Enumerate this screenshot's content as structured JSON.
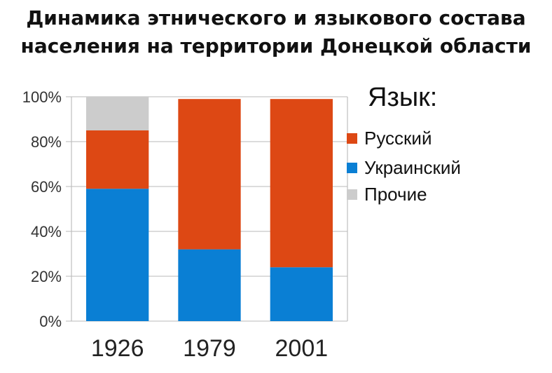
{
  "title_line1": "Динамика этнического и языкового состава",
  "title_line2": "населения на территории Донецкой области",
  "chart_data": {
    "type": "bar",
    "stacked": true,
    "categories": [
      "1926",
      "1979",
      "2001"
    ],
    "series": [
      {
        "name": "Украинский",
        "color": "#0a7fd4",
        "values": [
          59,
          32,
          24
        ]
      },
      {
        "name": "Русский",
        "color": "#dd4814",
        "values": [
          26,
          67,
          75
        ]
      },
      {
        "name": "Прочие",
        "color": "#cccccc",
        "values": [
          15,
          0,
          0
        ]
      }
    ],
    "ylim": [
      0,
      100
    ],
    "yticks": [
      0,
      20,
      40,
      60,
      80,
      100
    ],
    "ytick_labels": [
      "0%",
      "20%",
      "40%",
      "60%",
      "80%",
      "100%"
    ],
    "grid": "horizontal",
    "legend": {
      "title": "Язык:",
      "placement": "right",
      "entries": [
        "Русский",
        "Украинский",
        "Прочие"
      ]
    }
  }
}
